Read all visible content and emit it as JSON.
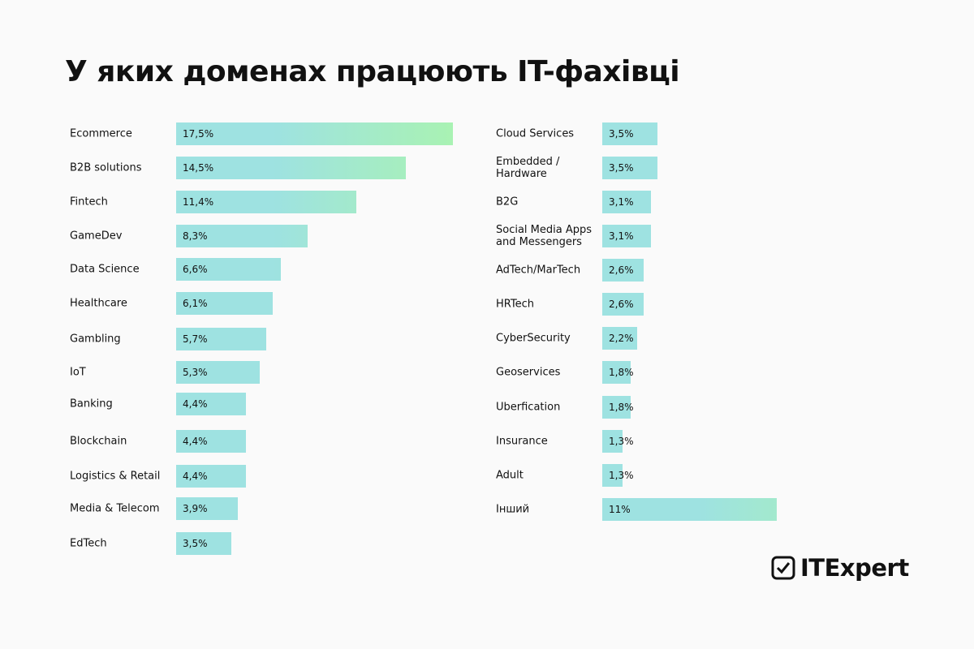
{
  "title": "У яких доменах працюють IT-фахівці",
  "brand": "ITExpert",
  "chart_data": [
    {
      "type": "bar",
      "orientation": "horizontal",
      "color": "#9ee2e1",
      "color_end": "#a9f2b3",
      "categories": [
        "Ecommerce",
        "B2B solutions",
        "Fintech",
        "GameDev",
        "Data Science",
        "Healthcare",
        "Gambling",
        "IoT",
        "Banking",
        "Blockchain",
        "Logistics & Retail",
        "Media & Telecom",
        "EdTech"
      ],
      "values": [
        17.5,
        14.5,
        11.4,
        8.3,
        6.6,
        6.1,
        5.7,
        5.3,
        4.4,
        4.4,
        4.4,
        3.9,
        3.5
      ],
      "value_labels": [
        "17,5%",
        "14,5%",
        "11,4%",
        "8,3%",
        "6,6%",
        "6,1%",
        "5,7%",
        "5,3%",
        "4,4%",
        "4,4%",
        "4,4%",
        "3,9%",
        "3,5%"
      ]
    },
    {
      "type": "bar",
      "orientation": "horizontal",
      "color": "#9ee2e1",
      "color_end": "#a9f2b3",
      "categories": [
        "Cloud Services",
        "Embedded /\nHardware",
        "B2G",
        "Social Media Apps\nand Messengers",
        "AdTech/MarTech",
        "HRTech",
        "CyberSecurity",
        "Geoservices",
        "Uberfication",
        "Insurance",
        "Adult",
        "Інший"
      ],
      "values": [
        3.5,
        3.5,
        3.1,
        3.1,
        2.6,
        2.6,
        2.2,
        1.8,
        1.8,
        1.3,
        1.3,
        11
      ],
      "value_labels": [
        "3,5%",
        "3,5%",
        "3,1%",
        "3,1%",
        "2,6%",
        "2,6%",
        "2,2%",
        "1,8%",
        "1,8%",
        "1,3%",
        "1,3%",
        "11%"
      ]
    }
  ]
}
